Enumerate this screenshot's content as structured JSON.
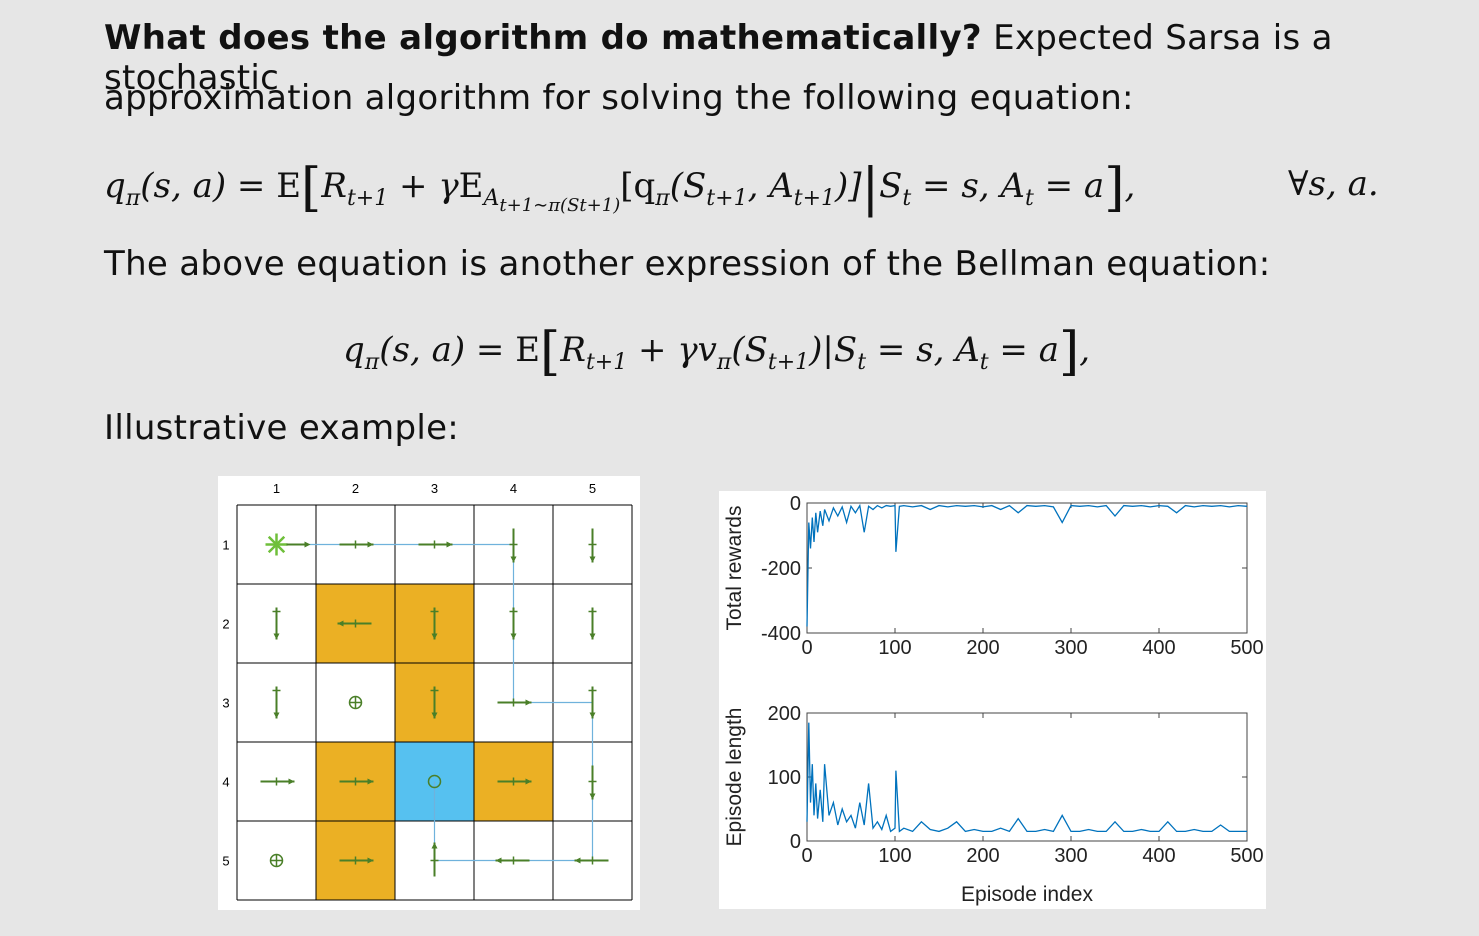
{
  "heading": {
    "question": "What does the algorithm do mathematically?",
    "line1_rest": " Expected Sarsa is a stochastic",
    "line2": "approximation algorithm for solving the following equation:"
  },
  "equation1": {
    "lhs": "q",
    "lhs_sub": "π",
    "lhs_args": "(s, a) = ",
    "expectation": "E",
    "r": "R",
    "r_sub": "t+1",
    "plus_gamma": " + γ",
    "inner_sub": "A",
    "inner_subsub": "t+1∼π(S",
    "inner_subsub2": "t+1",
    "inner_close": ")",
    "bracket_open": "[q",
    "q_sub": "π",
    "q_args": "(S",
    "s_sub": "t+1",
    "a_part": ", A",
    "a_sub": "t+1",
    "close": ")]",
    "cond": "S",
    "cond_sub": "t",
    "cond_rest": " = s, A",
    "cond_a_sub": "t",
    "cond_end": " = a",
    "forall": "∀s, a."
  },
  "line3": "The above equation is another expression of the Bellman equation:",
  "equation2": {
    "lhs": "q",
    "lhs_sub": "π",
    "lhs_args": "(s, a) = ",
    "expectation": "E",
    "r": "R",
    "r_sub": "t+1",
    "mid": " + γv",
    "v_sub": "π",
    "v_args": "(S",
    "s_sub": "t+1",
    "cond": ")|S",
    "cond_sub": "t",
    "cond_rest": " = s, A",
    "cond_a_sub": "t",
    "cond_end": " = a"
  },
  "line4": "Illustrative example:",
  "grid": {
    "col_labels": [
      "1",
      "2",
      "3",
      "4",
      "5"
    ],
    "row_labels": [
      "1",
      "2",
      "3",
      "4",
      "5"
    ],
    "cells": [
      [
        "start",
        "right",
        "right",
        "down",
        "down"
      ],
      [
        "updown",
        "left",
        "updown",
        "updown",
        "updown"
      ],
      [
        "updown",
        "stay",
        "updown",
        "right",
        "updown"
      ],
      [
        "right",
        "right",
        "target",
        "right",
        "down"
      ],
      [
        "stay",
        "right",
        "up",
        "left",
        "left"
      ]
    ],
    "forbidden": [
      [
        2,
        2
      ],
      [
        2,
        3
      ],
      [
        3,
        3
      ],
      [
        4,
        2
      ],
      [
        4,
        4
      ],
      [
        5,
        2
      ]
    ],
    "target": [
      4,
      3
    ],
    "colors": {
      "forbidden": "#ebb024",
      "target": "#56c1f0",
      "arrow": "#4a7f28",
      "path": "#6fb2dc",
      "start": "#6fbf3a"
    }
  },
  "chart_data": [
    {
      "type": "line",
      "ylabel": "Total rewards",
      "xlabel": "",
      "xlim": [
        0,
        500
      ],
      "ylim": [
        -400,
        0
      ],
      "xticks": [
        "0",
        "100",
        "200",
        "300",
        "400",
        "500"
      ],
      "yticks": [
        "0",
        "-200",
        "-400"
      ],
      "color": "#0072bd",
      "series": [
        {
          "x": [
            0,
            2,
            4,
            6,
            8,
            10,
            12,
            15,
            18,
            20,
            25,
            30,
            35,
            40,
            45,
            50,
            55,
            60,
            65,
            70,
            75,
            80,
            85,
            90,
            95,
            100,
            101,
            105,
            110,
            120,
            130,
            140,
            150,
            160,
            170,
            180,
            190,
            200,
            210,
            220,
            230,
            240,
            250,
            260,
            270,
            280,
            290,
            300,
            310,
            320,
            330,
            340,
            350,
            360,
            370,
            380,
            390,
            400,
            410,
            420,
            430,
            440,
            450,
            460,
            470,
            480,
            490,
            500
          ],
          "y": [
            -380,
            -60,
            -140,
            -45,
            -120,
            -30,
            -90,
            -25,
            -70,
            -20,
            -55,
            -15,
            -40,
            -12,
            -60,
            -10,
            -30,
            -8,
            -90,
            -10,
            -20,
            -8,
            -15,
            -8,
            -10,
            -8,
            -150,
            -10,
            -8,
            -12,
            -8,
            -20,
            -8,
            -12,
            -8,
            -10,
            -8,
            -12,
            -8,
            -20,
            -8,
            -30,
            -8,
            -10,
            -8,
            -12,
            -60,
            -8,
            -10,
            -8,
            -12,
            -8,
            -40,
            -8,
            -10,
            -8,
            -12,
            -8,
            -10,
            -30,
            -8,
            -12,
            -8,
            -10,
            -8,
            -12,
            -8,
            -10
          ]
        }
      ]
    },
    {
      "type": "line",
      "ylabel": "Episode length",
      "xlabel": "Episode index",
      "xlim": [
        0,
        500
      ],
      "ylim": [
        0,
        200
      ],
      "xticks": [
        "0",
        "100",
        "200",
        "300",
        "400",
        "500"
      ],
      "yticks": [
        "200",
        "100",
        "0"
      ],
      "color": "#0072bd",
      "series": [
        {
          "x": [
            0,
            2,
            4,
            6,
            8,
            10,
            12,
            15,
            18,
            20,
            25,
            30,
            35,
            40,
            45,
            50,
            55,
            60,
            65,
            70,
            75,
            80,
            85,
            90,
            95,
            100,
            101,
            105,
            110,
            120,
            130,
            140,
            150,
            160,
            170,
            180,
            190,
            200,
            210,
            220,
            230,
            240,
            250,
            260,
            270,
            280,
            290,
            300,
            310,
            320,
            330,
            340,
            350,
            360,
            370,
            380,
            390,
            400,
            410,
            420,
            430,
            440,
            450,
            460,
            470,
            480,
            490,
            500
          ],
          "y": [
            30,
            185,
            60,
            120,
            40,
            90,
            35,
            80,
            30,
            120,
            40,
            60,
            25,
            50,
            30,
            40,
            20,
            60,
            25,
            90,
            20,
            30,
            18,
            40,
            15,
            20,
            110,
            15,
            20,
            15,
            30,
            18,
            15,
            20,
            30,
            15,
            18,
            15,
            15,
            20,
            15,
            35,
            15,
            15,
            18,
            15,
            40,
            15,
            15,
            18,
            15,
            15,
            30,
            15,
            15,
            18,
            15,
            15,
            30,
            15,
            15,
            18,
            15,
            15,
            25,
            15,
            15,
            15
          ]
        }
      ]
    }
  ]
}
